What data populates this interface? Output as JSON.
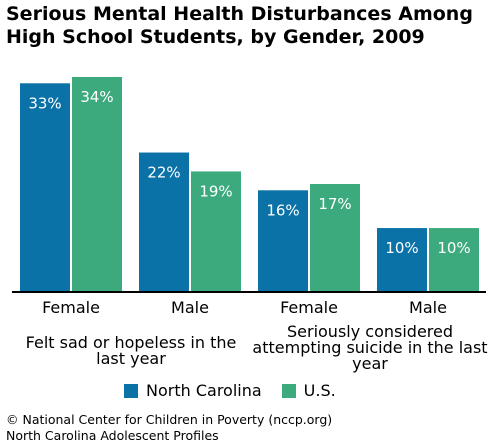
{
  "title": "Serious Mental Health Disturbances Among High School Students, by Gender, 2009",
  "colors": {
    "north_carolina": "#0b72a8",
    "us": "#3daa7e"
  },
  "legend": {
    "north_carolina": "North Carolina",
    "us": "U.S."
  },
  "footer": {
    "line1": "© National Center for Children in Poverty (nccp.org)",
    "line2": "North Carolina Adolescent Profiles"
  },
  "chart_data": {
    "type": "bar",
    "title": "Serious Mental Health Disturbances Among High School Students, by Gender, 2009",
    "categories": [
      "Female",
      "Male",
      "Female",
      "Male"
    ],
    "groups": [
      {
        "label": "Felt sad or hopeless in the last year",
        "categories": [
          "Female",
          "Male"
        ]
      },
      {
        "label": "Seriously considered attempting suicide in the last year",
        "categories": [
          "Female",
          "Male"
        ]
      }
    ],
    "series": [
      {
        "name": "North Carolina",
        "values": [
          33,
          22,
          16,
          10
        ],
        "labels": [
          "33%",
          "22%",
          "16%",
          "10%"
        ]
      },
      {
        "name": "U.S.",
        "values": [
          34,
          19,
          17,
          10
        ],
        "labels": [
          "34%",
          "19%",
          "17%",
          "10%"
        ]
      }
    ],
    "ylim": [
      0,
      34
    ],
    "xlabel": "",
    "ylabel": "",
    "grid": false,
    "legend_position": "bottom"
  }
}
